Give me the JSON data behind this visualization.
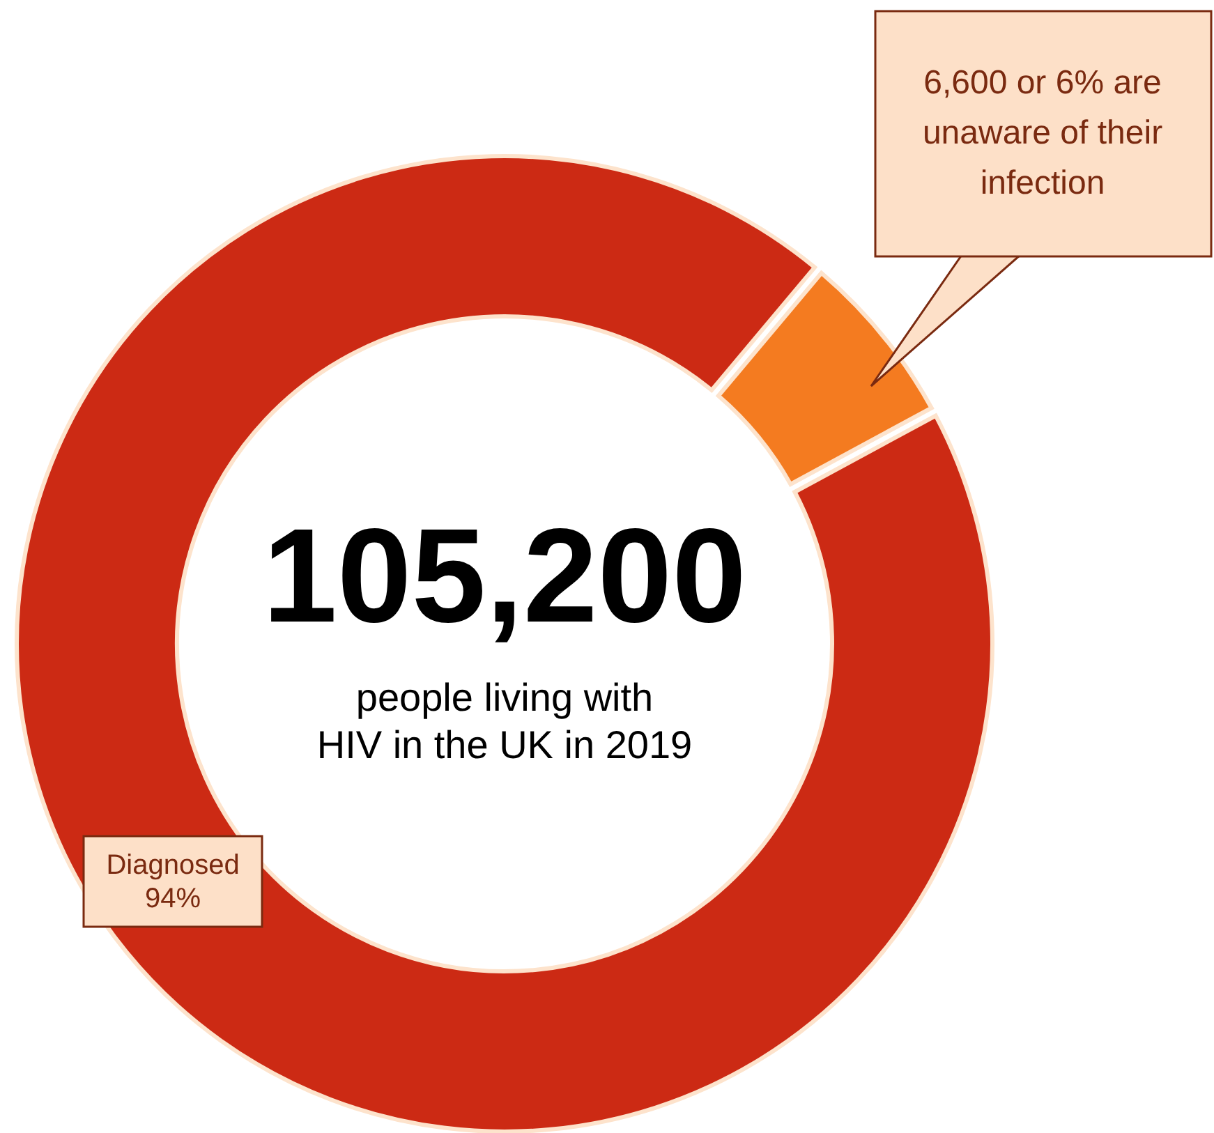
{
  "chart_data": {
    "type": "donut",
    "title": "105,200",
    "subtitle": "people living with HIV in the UK in 2019",
    "categories": [
      "Diagnosed",
      null
    ],
    "values": [
      94,
      6
    ],
    "colors": [
      "#cc2a14",
      "#f47b20"
    ],
    "value_labels": [
      "94%",
      null
    ],
    "annotations": [
      "6,600 or 6% are unaware of their infection"
    ]
  }
}
